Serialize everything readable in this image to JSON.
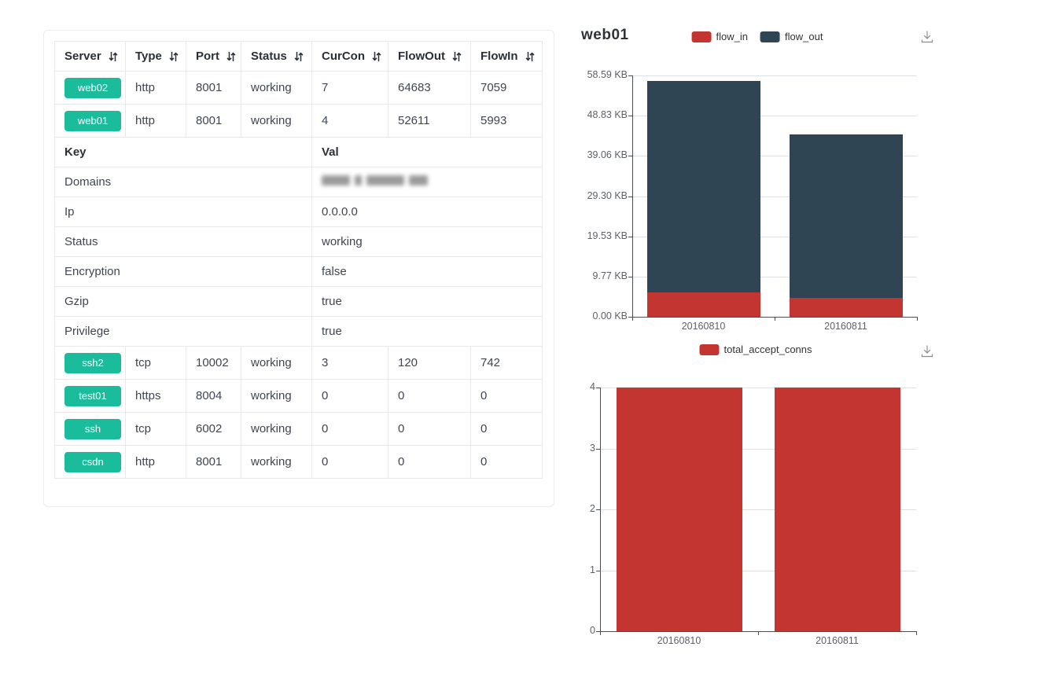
{
  "colors": {
    "badge_teal": "#1abc9c",
    "flow_in_red": "#c23531",
    "flow_out_slate": "#2f4554",
    "table_border": "#e9e9e9",
    "card_border": "#ececec",
    "grid_line": "#dcdfe3",
    "axis_line": "#4a4f55"
  },
  "icons": {
    "sort": "sort-arrows-icon",
    "download": "save-as-image-download-icon"
  },
  "server_panel": {
    "columns": [
      "Server",
      "Type",
      "Port",
      "Status",
      "CurCon",
      "FlowOut",
      "FlowIn"
    ],
    "top_rows": [
      {
        "server": "web02",
        "type": "http",
        "port": "8001",
        "status": "working",
        "curcon": "7",
        "flowout": "64683",
        "flowin": "7059"
      },
      {
        "server": "web01",
        "type": "http",
        "port": "8001",
        "status": "working",
        "curcon": "4",
        "flowout": "52611",
        "flowin": "5993"
      }
    ],
    "kv_header": {
      "key": "Key",
      "val": "Val"
    },
    "kv_rows": [
      {
        "key": "Domains",
        "val": "",
        "redacted": true
      },
      {
        "key": "Ip",
        "val": "0.0.0.0"
      },
      {
        "key": "Status",
        "val": "working"
      },
      {
        "key": "Encryption",
        "val": "false"
      },
      {
        "key": "Gzip",
        "val": "true"
      },
      {
        "key": "Privilege",
        "val": "true"
      }
    ],
    "bottom_rows": [
      {
        "server": "ssh2",
        "type": "tcp",
        "port": "10002",
        "status": "working",
        "curcon": "3",
        "flowout": "120",
        "flowin": "742"
      },
      {
        "server": "test01",
        "type": "https",
        "port": "8004",
        "status": "working",
        "curcon": "0",
        "flowout": "0",
        "flowin": "0"
      },
      {
        "server": "ssh",
        "type": "tcp",
        "port": "6002",
        "status": "working",
        "curcon": "0",
        "flowout": "0",
        "flowin": "0"
      },
      {
        "server": "csdn",
        "type": "http",
        "port": "8001",
        "status": "working",
        "curcon": "0",
        "flowout": "0",
        "flowin": "0"
      }
    ]
  },
  "chart_data": [
    {
      "type": "bar",
      "stacked": true,
      "title": "web01",
      "categories": [
        "20160810",
        "20160811"
      ],
      "series": [
        {
          "name": "flow_in",
          "color": "#c23531",
          "values": [
            5993,
            4700
          ]
        },
        {
          "name": "flow_out",
          "color": "#2f4554",
          "values": [
            52611,
            40650
          ]
        }
      ],
      "unit": "bytes",
      "ylim": [
        0,
        60000
      ],
      "y_tick_labels_top_to_bottom": [
        "58.59 KB",
        "48.83 KB",
        "39.06 KB",
        "29.30 KB",
        "19.53 KB",
        "9.77 KB",
        "0.00 KB"
      ],
      "grid": true,
      "legend_position": "top-center"
    },
    {
      "type": "bar",
      "stacked": false,
      "title": "",
      "categories": [
        "20160810",
        "20160811"
      ],
      "series": [
        {
          "name": "total_accept_conns",
          "color": "#c23531",
          "values": [
            4,
            4
          ]
        }
      ],
      "unit": "conns",
      "ylim": [
        0,
        4
      ],
      "y_tick_labels_top_to_bottom": [
        "4",
        "3",
        "2",
        "1",
        "0"
      ],
      "grid": true,
      "legend_position": "top-center"
    }
  ]
}
